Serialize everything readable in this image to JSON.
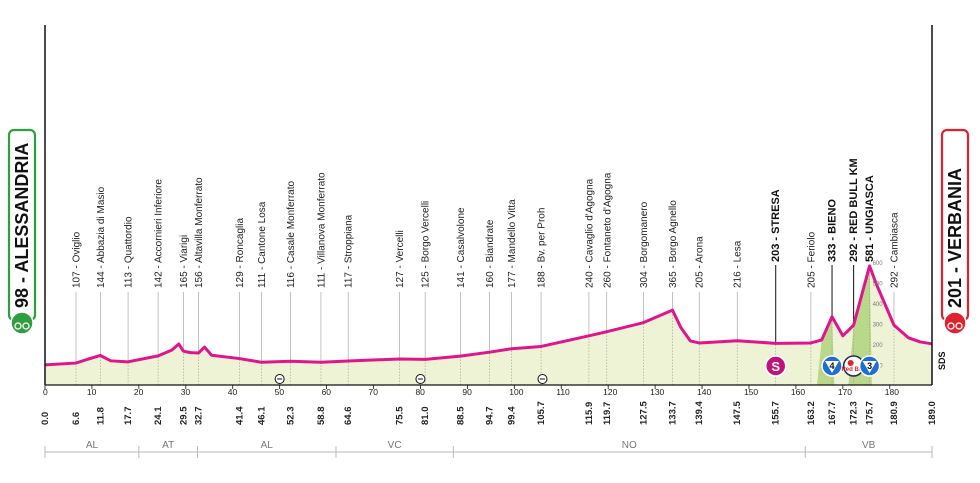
{
  "chart_data": {
    "type": "area",
    "title": "",
    "xlabel": "",
    "ylabel": "",
    "total_km": 189.0,
    "xlim": [
      0,
      189
    ],
    "ylim": [
      0,
      700
    ],
    "colors": {
      "profile_line": "#e0148c",
      "profile_fill": "#eef3d6",
      "climb_fill": "#b9d88a",
      "start_green": "#2e9e3f",
      "finish_red": "#e0212e",
      "sprint_pink": "#c0127a",
      "kom_blue": "#1f6fd1"
    },
    "start": {
      "label": "98 - ALESSANDRIA",
      "km": "0.0",
      "icon": "green-start-icon"
    },
    "finish": {
      "label": "201 - VERBANIA",
      "km": "189.0",
      "icon": "red-finish-icon"
    },
    "x_ticks": [
      0,
      10,
      20,
      30,
      40,
      50,
      60,
      70,
      80,
      90,
      100,
      110,
      120,
      130,
      140,
      150,
      160,
      170,
      180
    ],
    "y_ticks": [
      100,
      200,
      300,
      400,
      500,
      600
    ],
    "profile": [
      {
        "x": 0,
        "y": 98
      },
      {
        "x": 6.6,
        "y": 107
      },
      {
        "x": 9,
        "y": 125
      },
      {
        "x": 11.8,
        "y": 144
      },
      {
        "x": 14,
        "y": 118
      },
      {
        "x": 17.7,
        "y": 113
      },
      {
        "x": 24.1,
        "y": 142
      },
      {
        "x": 27,
        "y": 170
      },
      {
        "x": 28.5,
        "y": 200
      },
      {
        "x": 29.5,
        "y": 165
      },
      {
        "x": 31,
        "y": 158
      },
      {
        "x": 32.7,
        "y": 156
      },
      {
        "x": 34,
        "y": 185
      },
      {
        "x": 35.5,
        "y": 145
      },
      {
        "x": 41.4,
        "y": 129
      },
      {
        "x": 46.1,
        "y": 111
      },
      {
        "x": 52.3,
        "y": 116
      },
      {
        "x": 58.8,
        "y": 111
      },
      {
        "x": 64.6,
        "y": 117
      },
      {
        "x": 75.5,
        "y": 127
      },
      {
        "x": 81.0,
        "y": 125
      },
      {
        "x": 88.5,
        "y": 141
      },
      {
        "x": 94.7,
        "y": 160
      },
      {
        "x": 99.4,
        "y": 177
      },
      {
        "x": 105.7,
        "y": 188
      },
      {
        "x": 115.9,
        "y": 240
      },
      {
        "x": 119.7,
        "y": 260
      },
      {
        "x": 127.5,
        "y": 304
      },
      {
        "x": 133.7,
        "y": 365
      },
      {
        "x": 135.5,
        "y": 280
      },
      {
        "x": 137.5,
        "y": 215
      },
      {
        "x": 139.4,
        "y": 205
      },
      {
        "x": 147.5,
        "y": 216
      },
      {
        "x": 155.7,
        "y": 203
      },
      {
        "x": 163.2,
        "y": 205
      },
      {
        "x": 165.5,
        "y": 220
      },
      {
        "x": 167.7,
        "y": 333
      },
      {
        "x": 170,
        "y": 240
      },
      {
        "x": 172.3,
        "y": 292
      },
      {
        "x": 175.7,
        "y": 581
      },
      {
        "x": 177,
        "y": 500
      },
      {
        "x": 180.9,
        "y": 292
      },
      {
        "x": 184,
        "y": 230
      },
      {
        "x": 186.5,
        "y": 210
      },
      {
        "x": 189,
        "y": 201
      }
    ],
    "waypoints": [
      {
        "km": "6.6",
        "x": 6.6,
        "label": "107 - Oviglio"
      },
      {
        "km": "11.8",
        "x": 11.8,
        "label": "144 - Abbazia di Masio"
      },
      {
        "km": "17.7",
        "x": 17.7,
        "label": "113 - Quattordio"
      },
      {
        "km": "24.1",
        "x": 24.1,
        "label": "142 - Accornieri Inferiore"
      },
      {
        "km": "29.5",
        "x": 29.5,
        "label": "165 - Viarigi"
      },
      {
        "km": "32.7",
        "x": 32.7,
        "label": "156 - Altavilla Monferrato"
      },
      {
        "km": "41.4",
        "x": 41.4,
        "label": "129 - Roncaglia"
      },
      {
        "km": "46.1",
        "x": 46.1,
        "label": "111 - Cantone Losa"
      },
      {
        "km": "52.3",
        "x": 52.3,
        "label": "116 - Casale Monferrato"
      },
      {
        "km": "58.8",
        "x": 58.8,
        "label": "111 - Villanova Monferrato"
      },
      {
        "km": "64.6",
        "x": 64.6,
        "label": "117 - Stroppiana"
      },
      {
        "km": "75.5",
        "x": 75.5,
        "label": "127 - Vercelli"
      },
      {
        "km": "81.0",
        "x": 81.0,
        "label": "125 - Borgo Vercelli"
      },
      {
        "km": "88.5",
        "x": 88.5,
        "label": "141 - Casalvolone"
      },
      {
        "km": "94.7",
        "x": 94.7,
        "label": "160 - Biandrate"
      },
      {
        "km": "99.4",
        "x": 99.4,
        "label": "177 - Mandello Vitta"
      },
      {
        "km": "105.7",
        "x": 105.7,
        "label": "188 - Bv. per Proh"
      },
      {
        "km": "115.9",
        "x": 115.9,
        "label": "240 - Cavaglio d'Agogna"
      },
      {
        "km": "119.7",
        "x": 119.7,
        "label": "260 - Fontaneto d'Agogna"
      },
      {
        "km": "127.5",
        "x": 127.5,
        "label": "304 - Borgomanero"
      },
      {
        "km": "133.7",
        "x": 133.7,
        "label": "365 - Borgo Agnello"
      },
      {
        "km": "139.4",
        "x": 139.4,
        "label": "205 - Arona"
      },
      {
        "km": "147.5",
        "x": 147.5,
        "label": "216 - Lesa"
      },
      {
        "km": "155.7",
        "x": 155.7,
        "label": "203 - STRESA",
        "bold": true
      },
      {
        "km": "163.2",
        "x": 163.2,
        "label": "205 - Feriolo"
      },
      {
        "km": "167.7",
        "x": 167.7,
        "label": "333 - BIENO",
        "bold": true
      },
      {
        "km": "172.3",
        "x": 172.3,
        "label": "292 - RED BULL KM",
        "bold": true
      },
      {
        "km": "175.7",
        "x": 175.7,
        "label": "581 - UNGIASCA",
        "bold": true
      },
      {
        "km": "180.9",
        "x": 180.9,
        "label": "292 - Cambiasca"
      }
    ],
    "markers": [
      {
        "type": "sprint",
        "km": 155.7,
        "label": "S",
        "icon": "sprint-icon"
      },
      {
        "type": "kom",
        "km": 167.7,
        "label": "4",
        "icon": "kom-cat4-icon"
      },
      {
        "type": "bonus",
        "km": 172.3,
        "label": "Red Bull",
        "icon": "red-bull-km-icon"
      },
      {
        "type": "kom",
        "km": 175.7,
        "label": "3",
        "icon": "kom-cat3-icon"
      }
    ],
    "level_crossings": [
      {
        "km": 50,
        "icon": "railway-crossing-icon"
      },
      {
        "km": 80,
        "icon": "railway-crossing-icon"
      },
      {
        "km": 106,
        "icon": "railway-crossing-icon"
      }
    ],
    "regions": [
      {
        "label": "AL",
        "from": 0,
        "to": 20
      },
      {
        "label": "AT",
        "from": 20,
        "to": 32.5
      },
      {
        "label": "AL",
        "from": 32.5,
        "to": 62
      },
      {
        "label": "VC",
        "from": 62,
        "to": 87
      },
      {
        "label": "NO",
        "from": 87,
        "to": 162
      },
      {
        "label": "VB",
        "from": 162,
        "to": 189
      }
    ],
    "sds_label": "SDS"
  }
}
